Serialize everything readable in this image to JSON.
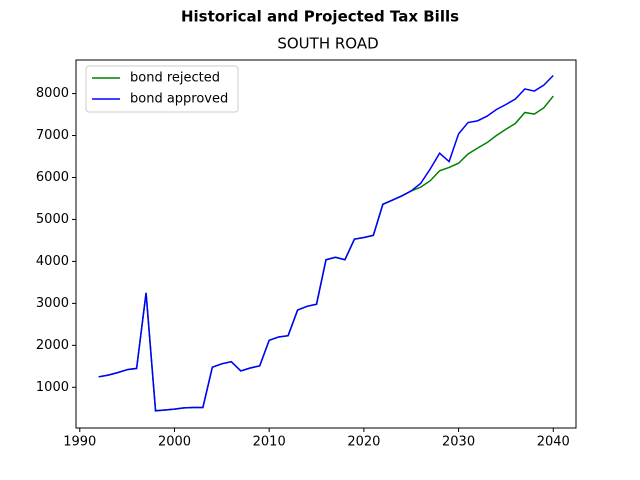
{
  "chart_data": {
    "type": "line",
    "title": "Historical and Projected Tax Bills",
    "subtitle": "SOUTH ROAD",
    "x": [
      1992,
      1993,
      1994,
      1995,
      1996,
      1997,
      1998,
      1999,
      2000,
      2001,
      2002,
      2003,
      2004,
      2005,
      2006,
      2007,
      2008,
      2009,
      2010,
      2011,
      2012,
      2013,
      2014,
      2015,
      2016,
      2017,
      2018,
      2019,
      2020,
      2021,
      2022,
      2023,
      2024,
      2025,
      2026,
      2027,
      2028,
      2029,
      2030,
      2031,
      2032,
      2033,
      2034,
      2035,
      2036,
      2037,
      2038,
      2039,
      2040
    ],
    "series": [
      {
        "name": "bond rejected",
        "color": "#008000",
        "values": [
          1250,
          1290,
          1350,
          1420,
          1450,
          3250,
          440,
          460,
          480,
          510,
          520,
          520,
          1480,
          1560,
          1610,
          1390,
          1460,
          1510,
          2120,
          2200,
          2230,
          2840,
          2930,
          2980,
          4040,
          4100,
          4040,
          4530,
          4570,
          4620,
          5360,
          5460,
          5560,
          5680,
          5770,
          5920,
          6160,
          6240,
          6340,
          6560,
          6700,
          6830,
          7000,
          7150,
          7290,
          7550,
          7510,
          7660,
          7940
        ]
      },
      {
        "name": "bond approved",
        "color": "#0000ff",
        "values": [
          1250,
          1290,
          1350,
          1420,
          1450,
          3250,
          440,
          460,
          480,
          510,
          520,
          520,
          1480,
          1560,
          1610,
          1390,
          1460,
          1510,
          2120,
          2200,
          2230,
          2840,
          2930,
          2980,
          4040,
          4100,
          4040,
          4530,
          4570,
          4620,
          5360,
          5460,
          5560,
          5680,
          5860,
          6200,
          6580,
          6380,
          7040,
          7310,
          7350,
          7460,
          7620,
          7740,
          7870,
          8110,
          8060,
          8200,
          8430
        ]
      }
    ],
    "xlim": [
      1989.6,
      2042.4
    ],
    "xticks": [
      1990,
      2000,
      2010,
      2020,
      2030,
      2040
    ],
    "ylim": [
      30,
      8800
    ],
    "yticks": [
      1000,
      2000,
      3000,
      4000,
      5000,
      6000,
      7000,
      8000
    ],
    "grid": false,
    "legend": "upper left"
  }
}
